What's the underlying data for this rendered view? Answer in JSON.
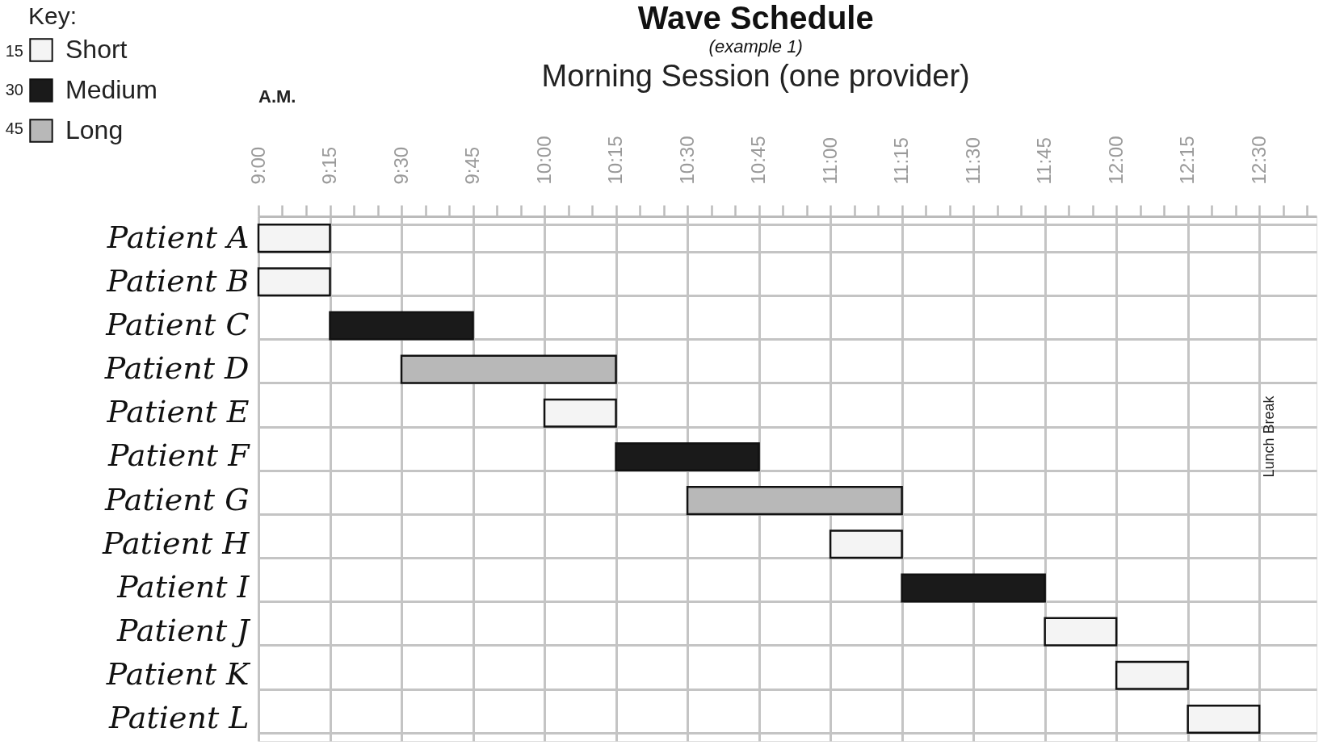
{
  "chart_data": {
    "type": "bar",
    "orientation": "horizontal",
    "title": "Wave Schedule",
    "subtitle": "(example 1)",
    "annotations": [
      "Morning Session (one provider)",
      "A.M.",
      "Lunch Break",
      "15",
      "30",
      "45"
    ],
    "legend_title": "Key:",
    "legend": "top left",
    "categories": [
      "Patient A",
      "Patient B",
      "Patient C",
      "Patient D",
      "Patient E",
      "Patient F",
      "Patient G",
      "Patient H",
      "Patient I",
      "Patient J",
      "Patient K",
      "Patient L"
    ],
    "series": [
      {
        "name": "Short",
        "color": "#f4f4f4",
        "base": [
          9,
          9,
          null,
          null,
          10,
          null,
          null,
          11,
          null,
          11.75,
          12,
          12.25
        ],
        "values": [
          0.25,
          0.25,
          null,
          null,
          0.25,
          null,
          null,
          0.25,
          null,
          0.25,
          0.25,
          0.25
        ]
      },
      {
        "name": "Medium",
        "color": "#1a1a1a",
        "base": [
          null,
          null,
          9.25,
          null,
          null,
          10.25,
          null,
          null,
          11.25,
          null,
          null,
          null
        ],
        "values": [
          null,
          null,
          0.5,
          null,
          null,
          0.5,
          null,
          null,
          0.5,
          null,
          null,
          null
        ]
      },
      {
        "name": "Long",
        "color": "#b8b8b8",
        "base": [
          null,
          null,
          null,
          9.5,
          null,
          null,
          10.5,
          null,
          null,
          null,
          null,
          null
        ],
        "values": [
          null,
          null,
          null,
          0.75,
          null,
          null,
          0.75,
          null,
          null,
          null,
          null,
          null
        ]
      }
    ],
    "xlim": [
      9,
      12.7
    ],
    "xticks": [
      {
        "value": 9,
        "label": "9:00"
      },
      {
        "value": 9.0833,
        "label": null
      },
      {
        "value": 9.1667,
        "label": null
      },
      {
        "value": 9.25,
        "label": "9:15"
      },
      {
        "value": 9.3333,
        "label": null
      },
      {
        "value": 9.4167,
        "label": null
      },
      {
        "value": 9.5,
        "label": "9:30"
      },
      {
        "value": 9.5833,
        "label": null
      },
      {
        "value": 9.6667,
        "label": null
      },
      {
        "value": 9.75,
        "label": "9:45"
      },
      {
        "value": 9.8333,
        "label": null
      },
      {
        "value": 9.9167,
        "label": null
      },
      {
        "value": 10,
        "label": "10:00"
      },
      {
        "value": 10.0833,
        "label": null
      },
      {
        "value": 10.1667,
        "label": null
      },
      {
        "value": 10.25,
        "label": "10:15"
      },
      {
        "value": 10.3333,
        "label": null
      },
      {
        "value": 10.4167,
        "label": null
      },
      {
        "value": 10.5,
        "label": "10:30"
      },
      {
        "value": 10.5833,
        "label": null
      },
      {
        "value": 10.6667,
        "label": null
      },
      {
        "value": 10.75,
        "label": "10:45"
      },
      {
        "value": 10.8333,
        "label": null
      },
      {
        "value": 10.9167,
        "label": null
      },
      {
        "value": 11,
        "label": "11:00"
      },
      {
        "value": 11.0833,
        "label": null
      },
      {
        "value": 11.1667,
        "label": null
      },
      {
        "value": 11.25,
        "label": "11:15"
      },
      {
        "value": 11.3333,
        "label": null
      },
      {
        "value": 11.4167,
        "label": null
      },
      {
        "value": 11.5,
        "label": "11:30"
      },
      {
        "value": 11.5833,
        "label": null
      },
      {
        "value": 11.6667,
        "label": null
      },
      {
        "value": 11.75,
        "label": "11:45"
      },
      {
        "value": 11.8333,
        "label": null
      },
      {
        "value": 11.9167,
        "label": null
      },
      {
        "value": 12,
        "label": "12:00"
      },
      {
        "value": 12.0833,
        "label": null
      },
      {
        "value": 12.1667,
        "label": null
      },
      {
        "value": 12.25,
        "label": "12:15"
      },
      {
        "value": 12.3333,
        "label": null
      },
      {
        "value": 12.4167,
        "label": null
      },
      {
        "value": 12.5,
        "label": "12:30"
      },
      {
        "value": 12.5833,
        "label": null
      },
      {
        "value": 12.6667,
        "label": null
      }
    ],
    "grid": true
  }
}
